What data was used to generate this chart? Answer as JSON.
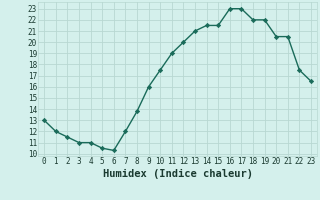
{
  "x": [
    0,
    1,
    2,
    3,
    4,
    5,
    6,
    7,
    8,
    9,
    10,
    11,
    12,
    13,
    14,
    15,
    16,
    17,
    18,
    19,
    20,
    21,
    22,
    23
  ],
  "y": [
    13.0,
    12.0,
    11.5,
    11.0,
    11.0,
    10.5,
    10.3,
    12.0,
    13.8,
    16.0,
    17.5,
    19.0,
    20.0,
    21.0,
    21.5,
    21.5,
    23.0,
    23.0,
    22.0,
    22.0,
    20.5,
    20.5,
    17.5,
    16.5
  ],
  "xlabel": "Humidex (Indice chaleur)",
  "ylim": [
    9.8,
    23.6
  ],
  "xlim": [
    -0.5,
    23.5
  ],
  "yticks": [
    10,
    11,
    12,
    13,
    14,
    15,
    16,
    17,
    18,
    19,
    20,
    21,
    22,
    23
  ],
  "xticks": [
    0,
    1,
    2,
    3,
    4,
    5,
    6,
    7,
    8,
    9,
    10,
    11,
    12,
    13,
    14,
    15,
    16,
    17,
    18,
    19,
    20,
    21,
    22,
    23
  ],
  "line_color": "#1a6b5a",
  "marker": "D",
  "marker_size": 2.2,
  "bg_color": "#d4f0ec",
  "grid_color": "#b8d8d2",
  "tick_label_color": "#1a3a30",
  "xlabel_color": "#1a3a30",
  "xlabel_fontsize": 7.5,
  "tick_fontsize": 5.5
}
